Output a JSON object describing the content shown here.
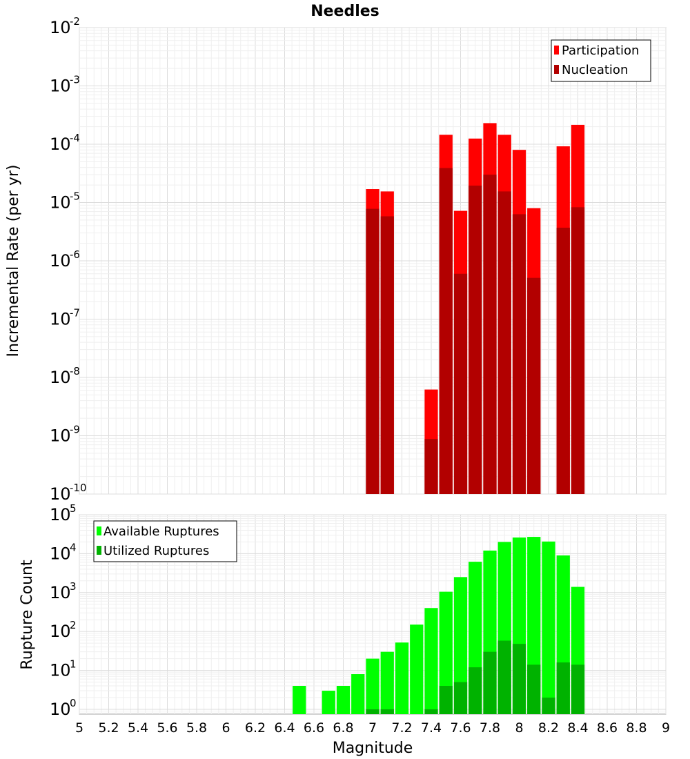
{
  "chart_data": {
    "title": "Needles",
    "xlabel": "Magnitude",
    "xlim": [
      5,
      9
    ],
    "xticks": [
      "5",
      "5.2",
      "5.4",
      "5.6",
      "5.8",
      "6",
      "6.2",
      "6.4",
      "6.6",
      "6.8",
      "7",
      "7.2",
      "7.4",
      "7.6",
      "7.8",
      "8",
      "8.2",
      "8.4",
      "8.6",
      "8.8",
      "9"
    ],
    "bin_width": 0.1,
    "panels": [
      {
        "type": "bar",
        "yscale": "log",
        "ylabel": "Incremental Rate (per yr)",
        "ylim": [
          1e-10,
          0.01
        ],
        "ytick_exponents": [
          -10,
          -9,
          -8,
          -7,
          -6,
          -5,
          -4,
          -3,
          -2
        ],
        "ytick_base": "10",
        "legend_position": "top-right",
        "series": [
          {
            "name": "Participation",
            "color": "#ff0000",
            "x": [
              7.0,
              7.1,
              7.4,
              7.5,
              7.6,
              7.7,
              7.8,
              7.9,
              8.0,
              8.1,
              8.3,
              8.4
            ],
            "values": [
              1.7e-05,
              1.55e-05,
              6.2e-09,
              0.000145,
              7.2e-06,
              0.000125,
              0.00023,
              0.000145,
              8e-05,
              8e-06,
              9.2e-05,
              0.000215
            ]
          },
          {
            "name": "Nucleation",
            "color": "#b20000",
            "x": [
              7.0,
              7.1,
              7.4,
              7.5,
              7.6,
              7.7,
              7.8,
              7.9,
              8.0,
              8.1,
              8.3,
              8.4
            ],
            "values": [
              7.8e-06,
              5.8e-06,
              8.8e-10,
              3.9e-05,
              6e-07,
              1.95e-05,
              3e-05,
              1.55e-05,
              6.3e-06,
              5.1e-07,
              3.7e-06,
              8.3e-06
            ]
          }
        ]
      },
      {
        "type": "bar",
        "yscale": "log",
        "ylabel": "Rupture Count",
        "ylim": [
          0.75,
          100000
        ],
        "ytick_exponents": [
          0,
          1,
          2,
          3,
          4,
          5
        ],
        "ytick_base": "10",
        "legend_position": "top-left",
        "series": [
          {
            "name": "Available Ruptures",
            "color": "#00ff00",
            "x": [
              6.5,
              6.7,
              6.8,
              6.9,
              7.0,
              7.1,
              7.2,
              7.3,
              7.4,
              7.5,
              7.6,
              7.7,
              7.8,
              7.9,
              8.0,
              8.1,
              8.2,
              8.3,
              8.4
            ],
            "values": [
              4,
              3,
              4,
              8,
              20,
              30,
              52,
              150,
              400,
              1050,
              2500,
              6200,
              12000,
              20000,
              26000,
              27000,
              20500,
              9000,
              1400
            ]
          },
          {
            "name": "Utilized Ruptures",
            "color": "#00b200",
            "x": [
              7.0,
              7.1,
              7.4,
              7.5,
              7.6,
              7.7,
              7.8,
              7.9,
              8.0,
              8.1,
              8.2,
              8.3,
              8.4
            ],
            "values": [
              1,
              1,
              1,
              4,
              5,
              12,
              30,
              58,
              48,
              14,
              2,
              16,
              14
            ]
          }
        ]
      }
    ]
  }
}
